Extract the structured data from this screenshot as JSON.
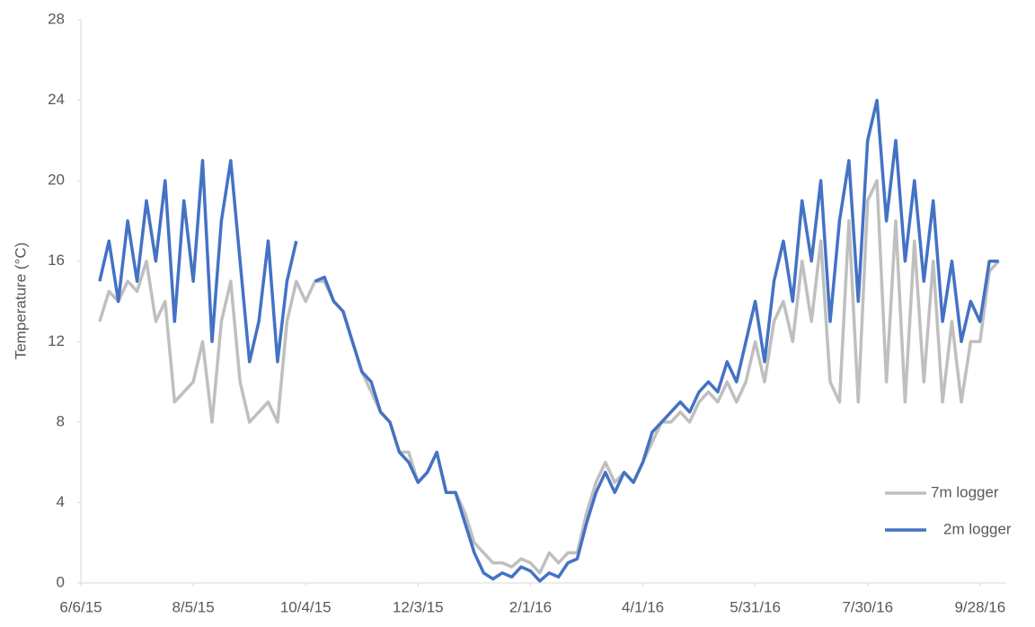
{
  "chart_data": {
    "type": "line",
    "y_label": "Temperature (°C)",
    "x": [
      "6/16/15",
      "6/21/15",
      "6/26/15",
      "7/1/15",
      "7/6/15",
      "7/11/15",
      "7/16/15",
      "7/21/15",
      "7/26/15",
      "7/31/15",
      "8/5/15",
      "8/10/15",
      "8/15/15",
      "8/20/15",
      "8/25/15",
      "8/30/15",
      "9/4/15",
      "9/9/15",
      "9/14/15",
      "9/19/15",
      "9/24/15",
      "9/29/15",
      "10/4/15",
      "10/9/15",
      "10/14/15",
      "10/19/15",
      "10/24/15",
      "10/29/15",
      "11/3/15",
      "11/8/15",
      "11/13/15",
      "11/18/15",
      "11/23/15",
      "11/28/15",
      "12/3/15",
      "12/8/15",
      "12/13/15",
      "12/18/15",
      "12/23/15",
      "12/28/15",
      "1/2/16",
      "1/7/16",
      "1/12/16",
      "1/17/16",
      "1/22/16",
      "1/27/16",
      "2/1/16",
      "2/6/16",
      "2/11/16",
      "2/16/16",
      "2/21/16",
      "2/26/16",
      "3/2/16",
      "3/7/16",
      "3/12/16",
      "3/17/16",
      "3/22/16",
      "3/27/16",
      "4/1/16",
      "4/6/16",
      "4/11/16",
      "4/16/16",
      "4/21/16",
      "4/26/16",
      "5/1/16",
      "5/6/16",
      "5/11/16",
      "5/16/16",
      "5/21/16",
      "5/26/16",
      "5/31/16",
      "6/5/16",
      "6/10/16",
      "6/15/16",
      "6/20/16",
      "6/25/16",
      "6/30/16",
      "7/5/16",
      "7/10/16",
      "7/15/16",
      "7/20/16",
      "7/25/16",
      "7/30/16",
      "8/4/16",
      "8/9/16",
      "8/14/16",
      "8/19/16",
      "8/24/16",
      "8/29/16",
      "9/3/16",
      "9/8/16",
      "9/13/16",
      "9/18/16",
      "9/23/16",
      "9/28/16",
      "10/3/16",
      "10/8/16"
    ],
    "series": [
      {
        "name": "7m logger",
        "color": "#bfbfbf",
        "values": [
          13,
          14.5,
          14,
          15,
          14.5,
          16,
          13,
          14,
          9,
          9.5,
          10,
          12,
          8,
          13,
          15,
          10,
          8,
          8.5,
          9,
          8,
          13,
          15,
          14,
          15,
          15,
          14,
          13.5,
          12,
          10.5,
          9.5,
          8.5,
          8,
          6.5,
          6.5,
          5,
          5.5,
          6.5,
          4.5,
          4.5,
          3.5,
          2,
          1.5,
          1,
          1,
          0.8,
          1.2,
          1,
          0.5,
          1.5,
          1,
          1.5,
          1.5,
          3.5,
          5,
          6,
          5,
          5.5,
          5,
          6,
          7,
          8,
          8,
          8.5,
          8,
          9,
          9.5,
          9,
          10,
          9,
          10,
          12,
          10,
          13,
          14,
          12,
          16,
          13,
          17,
          10,
          9,
          18,
          9,
          19,
          20,
          10,
          18,
          9,
          17,
          10,
          16,
          9,
          13,
          9,
          12,
          12,
          15.5,
          16
        ]
      },
      {
        "name": "2m logger",
        "color": "#4472c4",
        "values": [
          15,
          17,
          14,
          18,
          15,
          19,
          16,
          20,
          13,
          19,
          15,
          21,
          12,
          18,
          21,
          16,
          11,
          13,
          17,
          11,
          15,
          17,
          null,
          15,
          15.2,
          14,
          13.5,
          12,
          10.5,
          10,
          8.5,
          8,
          6.5,
          6,
          5,
          5.5,
          6.5,
          4.5,
          4.5,
          3,
          1.5,
          0.5,
          0.2,
          0.5,
          0.3,
          0.8,
          0.6,
          0.1,
          0.5,
          0.3,
          1,
          1.2,
          3,
          4.5,
          5.5,
          4.5,
          5.5,
          5,
          6,
          7.5,
          8,
          8.5,
          9,
          8.5,
          9.5,
          10,
          9.5,
          11,
          10,
          12,
          14,
          11,
          15,
          17,
          14,
          19,
          16,
          20,
          13,
          18,
          21,
          14,
          22,
          24,
          18,
          22,
          16,
          20,
          15,
          19,
          13,
          16,
          12,
          14,
          13,
          16,
          16
        ]
      }
    ],
    "xlim": [
      "6/6/15",
      "10/12/16"
    ],
    "xticks": [
      "6/6/15",
      "8/5/15",
      "10/4/15",
      "12/3/15",
      "2/1/16",
      "4/1/16",
      "5/31/16",
      "7/30/16",
      "9/28/16"
    ],
    "ylim": [
      0,
      28
    ],
    "yticks": [
      0,
      4,
      8,
      12,
      16,
      20,
      24,
      28
    ],
    "legend": "bottom-right"
  }
}
